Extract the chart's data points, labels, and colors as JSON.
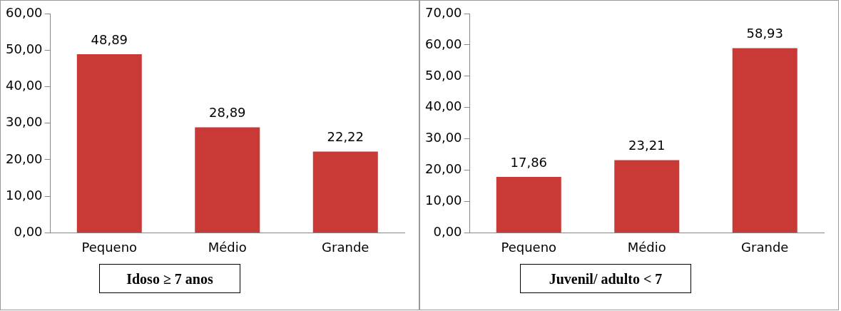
{
  "chart_data": [
    {
      "type": "bar",
      "title": "Idoso ≥ 7 anos",
      "categories": [
        "Pequeno",
        "Médio",
        "Grande"
      ],
      "values": [
        48.89,
        28.89,
        22.22
      ],
      "value_labels": [
        "48,89",
        "28,89",
        "22,22"
      ],
      "color": "#c93a36",
      "ylim": [
        0,
        60
      ],
      "yticks": [
        {
          "value": 0,
          "label": "0,00"
        },
        {
          "value": 10,
          "label": "10,00"
        },
        {
          "value": 20,
          "label": "20,00"
        },
        {
          "value": 30,
          "label": "30,00"
        },
        {
          "value": 40,
          "label": "40,00"
        },
        {
          "value": 50,
          "label": "50,00"
        },
        {
          "value": 60,
          "label": "60,00"
        }
      ],
      "grid": false,
      "legend": false
    },
    {
      "type": "bar",
      "title": "Juvenil/ adulto < 7",
      "categories": [
        "Pequeno",
        "Médio",
        "Grande"
      ],
      "values": [
        17.86,
        23.21,
        58.93
      ],
      "value_labels": [
        "17,86",
        "23,21",
        "58,93"
      ],
      "color": "#c93a36",
      "ylim": [
        0,
        70
      ],
      "yticks": [
        {
          "value": 0,
          "label": "0,00"
        },
        {
          "value": 10,
          "label": "10,00"
        },
        {
          "value": 20,
          "label": "20,00"
        },
        {
          "value": 30,
          "label": "30,00"
        },
        {
          "value": 40,
          "label": "40,00"
        },
        {
          "value": 50,
          "label": "50,00"
        },
        {
          "value": 60,
          "label": "60,00"
        },
        {
          "value": 70,
          "label": "70,00"
        }
      ],
      "grid": false,
      "legend": false
    }
  ]
}
